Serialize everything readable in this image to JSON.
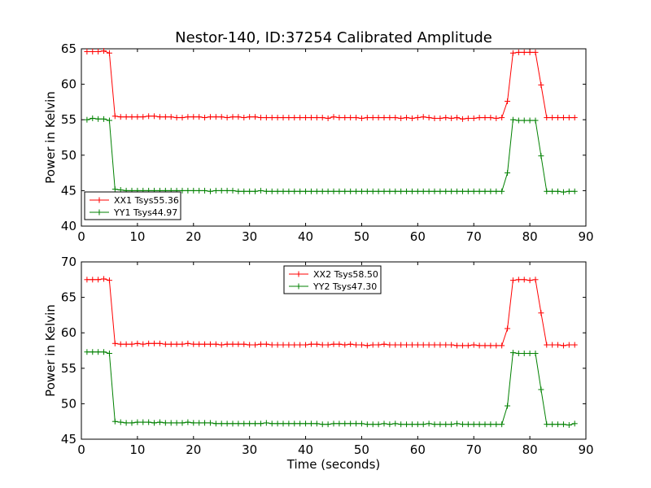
{
  "figure": {
    "title": "Nestor-140, ID:37254 Calibrated Amplitude",
    "xlabel": "Time (seconds)"
  },
  "chart_data": [
    {
      "type": "line",
      "title": "Nestor-140, ID:37254 Calibrated Amplitude",
      "xlabel": "",
      "ylabel": "Power in Kelvin",
      "xlim": [
        0,
        90
      ],
      "ylim": [
        40,
        65
      ],
      "xticks": [
        0,
        10,
        20,
        30,
        40,
        50,
        60,
        70,
        80,
        90
      ],
      "yticks": [
        40,
        45,
        50,
        55,
        60,
        65
      ],
      "legend_position": "lower-left",
      "x": [
        1,
        2,
        3,
        4,
        5,
        6,
        7,
        8,
        9,
        10,
        11,
        12,
        13,
        14,
        15,
        16,
        17,
        18,
        19,
        20,
        21,
        22,
        23,
        24,
        25,
        26,
        27,
        28,
        29,
        30,
        31,
        32,
        33,
        34,
        35,
        36,
        37,
        38,
        39,
        40,
        41,
        42,
        43,
        44,
        45,
        46,
        47,
        48,
        49,
        50,
        51,
        52,
        53,
        54,
        55,
        56,
        57,
        58,
        59,
        60,
        61,
        62,
        63,
        64,
        65,
        66,
        67,
        68,
        69,
        70,
        71,
        72,
        73,
        74,
        75,
        76,
        77,
        78,
        79,
        80,
        81,
        82,
        83,
        84,
        85,
        86,
        87,
        88
      ],
      "series": [
        {
          "name": "XX1 Tsys55.36",
          "color": "#ff0000",
          "values": [
            64.6,
            64.6,
            64.6,
            64.7,
            64.4,
            55.5,
            55.4,
            55.4,
            55.4,
            55.4,
            55.4,
            55.5,
            55.5,
            55.4,
            55.4,
            55.4,
            55.3,
            55.3,
            55.4,
            55.4,
            55.4,
            55.3,
            55.4,
            55.4,
            55.4,
            55.3,
            55.4,
            55.4,
            55.3,
            55.4,
            55.4,
            55.3,
            55.3,
            55.3,
            55.3,
            55.3,
            55.3,
            55.3,
            55.3,
            55.3,
            55.3,
            55.3,
            55.3,
            55.2,
            55.4,
            55.3,
            55.3,
            55.3,
            55.3,
            55.2,
            55.3,
            55.3,
            55.3,
            55.3,
            55.3,
            55.3,
            55.2,
            55.3,
            55.2,
            55.3,
            55.4,
            55.3,
            55.2,
            55.2,
            55.3,
            55.2,
            55.3,
            55.1,
            55.2,
            55.2,
            55.3,
            55.3,
            55.3,
            55.2,
            55.3,
            57.6,
            64.4,
            64.5,
            64.5,
            64.5,
            64.5,
            59.9,
            55.3,
            55.3,
            55.3,
            55.3,
            55.3,
            55.3
          ]
        },
        {
          "name": "YY1 Tsys44.97",
          "color": "#008000",
          "values": [
            55.0,
            55.2,
            55.1,
            55.1,
            54.9,
            45.2,
            45.1,
            45.0,
            45.0,
            45.0,
            45.0,
            45.0,
            45.0,
            45.0,
            45.0,
            45.0,
            45.0,
            45.0,
            45.0,
            45.0,
            45.0,
            45.0,
            44.9,
            45.0,
            45.0,
            45.0,
            45.0,
            44.9,
            44.9,
            44.9,
            44.9,
            45.0,
            44.9,
            44.9,
            44.9,
            44.9,
            44.9,
            44.9,
            44.9,
            44.9,
            44.9,
            44.9,
            44.9,
            44.9,
            44.9,
            44.9,
            44.9,
            44.9,
            44.9,
            44.9,
            44.9,
            44.9,
            44.9,
            44.9,
            44.9,
            44.9,
            44.9,
            44.9,
            44.9,
            44.9,
            44.9,
            44.9,
            44.9,
            44.9,
            44.9,
            44.9,
            44.9,
            44.9,
            44.9,
            44.9,
            44.9,
            44.9,
            44.9,
            44.9,
            44.9,
            47.5,
            55.0,
            54.9,
            54.9,
            54.9,
            54.9,
            49.9,
            44.9,
            44.9,
            44.9,
            44.8,
            44.9,
            44.9
          ]
        }
      ]
    },
    {
      "type": "line",
      "title": "",
      "xlabel": "Time (seconds)",
      "ylabel": "Power in Kelvin",
      "xlim": [
        0,
        90
      ],
      "ylim": [
        45,
        70
      ],
      "xticks": [
        0,
        10,
        20,
        30,
        40,
        50,
        60,
        70,
        80,
        90
      ],
      "yticks": [
        45,
        50,
        55,
        60,
        65,
        70
      ],
      "legend_position": "upper-center",
      "x": [
        1,
        2,
        3,
        4,
        5,
        6,
        7,
        8,
        9,
        10,
        11,
        12,
        13,
        14,
        15,
        16,
        17,
        18,
        19,
        20,
        21,
        22,
        23,
        24,
        25,
        26,
        27,
        28,
        29,
        30,
        31,
        32,
        33,
        34,
        35,
        36,
        37,
        38,
        39,
        40,
        41,
        42,
        43,
        44,
        45,
        46,
        47,
        48,
        49,
        50,
        51,
        52,
        53,
        54,
        55,
        56,
        57,
        58,
        59,
        60,
        61,
        62,
        63,
        64,
        65,
        66,
        67,
        68,
        69,
        70,
        71,
        72,
        73,
        74,
        75,
        76,
        77,
        78,
        79,
        80,
        81,
        82,
        83,
        84,
        85,
        86,
        87,
        88
      ],
      "series": [
        {
          "name": "XX2 Tsys58.50",
          "color": "#ff0000",
          "values": [
            67.5,
            67.5,
            67.5,
            67.6,
            67.4,
            58.5,
            58.4,
            58.4,
            58.4,
            58.5,
            58.4,
            58.5,
            58.5,
            58.5,
            58.4,
            58.4,
            58.4,
            58.4,
            58.5,
            58.4,
            58.4,
            58.4,
            58.4,
            58.4,
            58.3,
            58.4,
            58.4,
            58.4,
            58.4,
            58.3,
            58.3,
            58.4,
            58.4,
            58.3,
            58.3,
            58.3,
            58.3,
            58.3,
            58.3,
            58.3,
            58.4,
            58.4,
            58.3,
            58.3,
            58.4,
            58.4,
            58.3,
            58.4,
            58.3,
            58.3,
            58.2,
            58.3,
            58.3,
            58.4,
            58.3,
            58.3,
            58.3,
            58.3,
            58.3,
            58.3,
            58.3,
            58.3,
            58.3,
            58.3,
            58.3,
            58.3,
            58.2,
            58.2,
            58.2,
            58.3,
            58.2,
            58.2,
            58.2,
            58.2,
            58.2,
            60.6,
            67.4,
            67.5,
            67.5,
            67.4,
            67.5,
            62.8,
            58.3,
            58.3,
            58.3,
            58.2,
            58.3,
            58.3
          ]
        },
        {
          "name": "YY2 Tsys47.30",
          "color": "#008000",
          "values": [
            57.3,
            57.3,
            57.3,
            57.3,
            57.1,
            47.5,
            47.4,
            47.3,
            47.3,
            47.4,
            47.4,
            47.4,
            47.3,
            47.4,
            47.3,
            47.3,
            47.3,
            47.3,
            47.4,
            47.3,
            47.3,
            47.3,
            47.3,
            47.2,
            47.2,
            47.2,
            47.2,
            47.2,
            47.2,
            47.2,
            47.2,
            47.2,
            47.3,
            47.2,
            47.2,
            47.2,
            47.2,
            47.2,
            47.2,
            47.2,
            47.2,
            47.2,
            47.1,
            47.1,
            47.2,
            47.2,
            47.2,
            47.2,
            47.2,
            47.2,
            47.1,
            47.1,
            47.1,
            47.2,
            47.1,
            47.2,
            47.1,
            47.1,
            47.1,
            47.1,
            47.1,
            47.2,
            47.1,
            47.1,
            47.1,
            47.1,
            47.2,
            47.1,
            47.1,
            47.1,
            47.1,
            47.1,
            47.1,
            47.1,
            47.1,
            49.7,
            57.2,
            57.1,
            57.1,
            57.1,
            57.1,
            52.0,
            47.1,
            47.1,
            47.1,
            47.1,
            47.0,
            47.2
          ]
        }
      ]
    }
  ]
}
